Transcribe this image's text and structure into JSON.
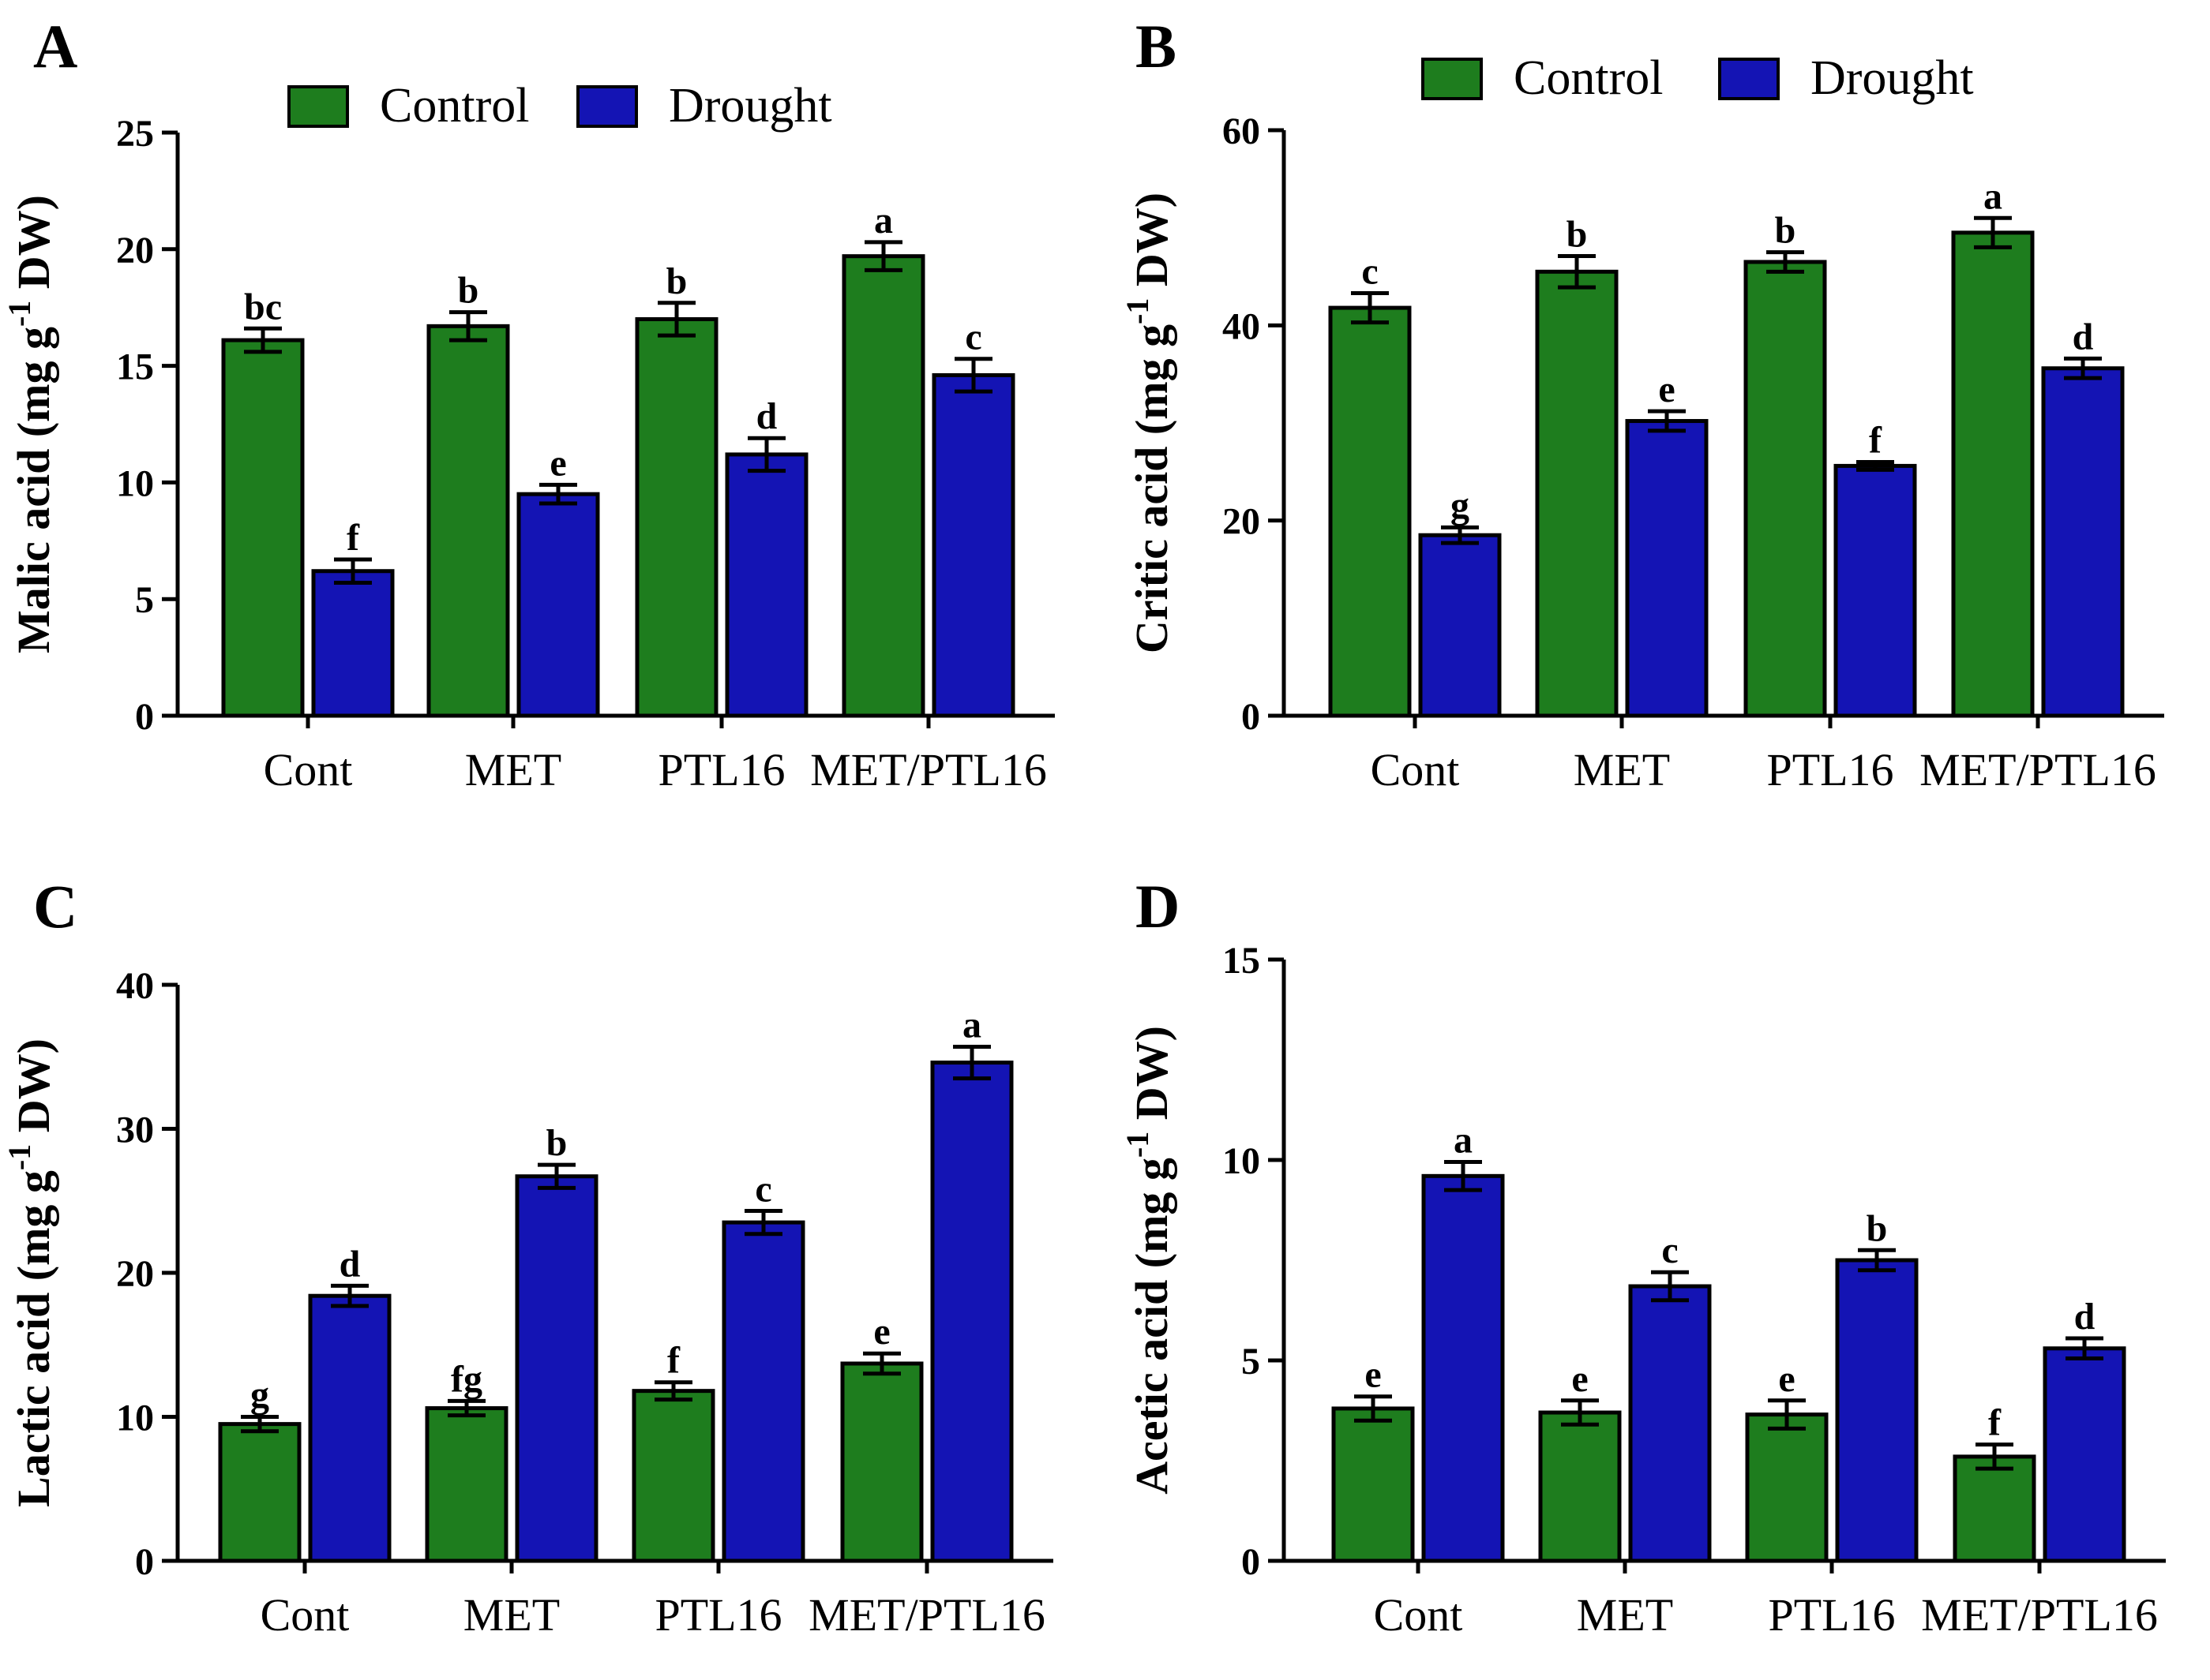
{
  "colors": {
    "control": "#1e7d1e",
    "drought": "#1414b4",
    "axis": "#000000"
  },
  "chart_data": [
    {
      "panel": "A",
      "type": "bar",
      "categories": [
        "Cont",
        "MET",
        "PTL16",
        "MET/PTL16"
      ],
      "series": [
        {
          "name": "Control",
          "values": [
            16.1,
            16.7,
            17.0,
            19.7
          ],
          "errors": [
            0.5,
            0.6,
            0.7,
            0.6
          ],
          "letters": [
            "bc",
            "b",
            "b",
            "a"
          ]
        },
        {
          "name": "Drought",
          "values": [
            6.2,
            9.5,
            11.2,
            14.6
          ],
          "errors": [
            0.5,
            0.4,
            0.7,
            0.7
          ],
          "letters": [
            "f",
            "e",
            "d",
            "c"
          ]
        }
      ],
      "ylabel": "Malic acid (mg g-1 DW)",
      "ylabel_main": "Malic acid (mg g",
      "ylabel_sup": "-1",
      "ylabel_end": " DW)",
      "ylim": [
        0,
        25
      ],
      "yticks": [
        "0",
        "5",
        "10",
        "15",
        "20",
        "25"
      ],
      "legend": [
        "Control",
        "Drought"
      ]
    },
    {
      "panel": "B",
      "type": "bar",
      "categories": [
        "Cont",
        "MET",
        "PTL16",
        "MET/PTL16"
      ],
      "series": [
        {
          "name": "Control",
          "values": [
            41.8,
            45.5,
            46.5,
            49.5
          ],
          "errors": [
            1.5,
            1.6,
            1.0,
            1.5
          ],
          "letters": [
            "c",
            "b",
            "b",
            "a"
          ]
        },
        {
          "name": "Drought",
          "values": [
            18.5,
            30.2,
            25.6,
            35.6
          ],
          "errors": [
            0.8,
            1.0,
            0.4,
            1.0
          ],
          "letters": [
            "g",
            "e",
            "f",
            "d"
          ]
        }
      ],
      "ylabel": "Critic acid (mg g-1 DW)",
      "ylabel_main": "Critic acid (mg g",
      "ylabel_sup": "-1",
      "ylabel_end": " DW)",
      "ylim": [
        0,
        60
      ],
      "yticks": [
        "0",
        "20",
        "40",
        "60"
      ],
      "legend": [
        "Control",
        "Drought"
      ]
    },
    {
      "panel": "C",
      "type": "bar",
      "categories": [
        "Cont",
        "MET",
        "PTL16",
        "MET/PTL16"
      ],
      "series": [
        {
          "name": "Control",
          "values": [
            9.5,
            10.6,
            11.8,
            13.7
          ],
          "errors": [
            0.5,
            0.5,
            0.6,
            0.7
          ],
          "letters": [
            "g",
            "fg",
            "f",
            "e"
          ]
        },
        {
          "name": "Drought",
          "values": [
            18.4,
            26.7,
            23.5,
            34.6
          ],
          "errors": [
            0.7,
            0.8,
            0.8,
            1.1
          ],
          "letters": [
            "d",
            "b",
            "c",
            "a"
          ]
        }
      ],
      "ylabel": "Lactic acid (mg g-1 DW)",
      "ylabel_main": "Lactic acid (mg g",
      "ylabel_sup": "-1",
      "ylabel_end": " DW)",
      "ylim": [
        0,
        40
      ],
      "yticks": [
        "0",
        "10",
        "20",
        "30",
        "40"
      ],
      "legend": [
        "Control",
        "Drought"
      ]
    },
    {
      "panel": "D",
      "type": "bar",
      "categories": [
        "Cont",
        "MET",
        "PTL16",
        "MET/PTL16"
      ],
      "series": [
        {
          "name": "Control",
          "values": [
            3.8,
            3.7,
            3.65,
            2.6
          ],
          "errors": [
            0.3,
            0.3,
            0.35,
            0.3
          ],
          "letters": [
            "e",
            "e",
            "e",
            "f"
          ]
        },
        {
          "name": "Drought",
          "values": [
            9.6,
            6.85,
            7.5,
            5.3
          ],
          "errors": [
            0.35,
            0.35,
            0.25,
            0.25
          ],
          "letters": [
            "a",
            "c",
            "b",
            "d"
          ]
        }
      ],
      "ylabel": "Acetic acid (mg g-1 DW)",
      "ylabel_main": "Acetic acid (mg g",
      "ylabel_sup": "-1",
      "ylabel_end": " DW)",
      "ylim": [
        0,
        15
      ],
      "yticks": [
        "0",
        "5",
        "10",
        "15"
      ],
      "legend": [
        "Control",
        "Drought"
      ]
    }
  ]
}
